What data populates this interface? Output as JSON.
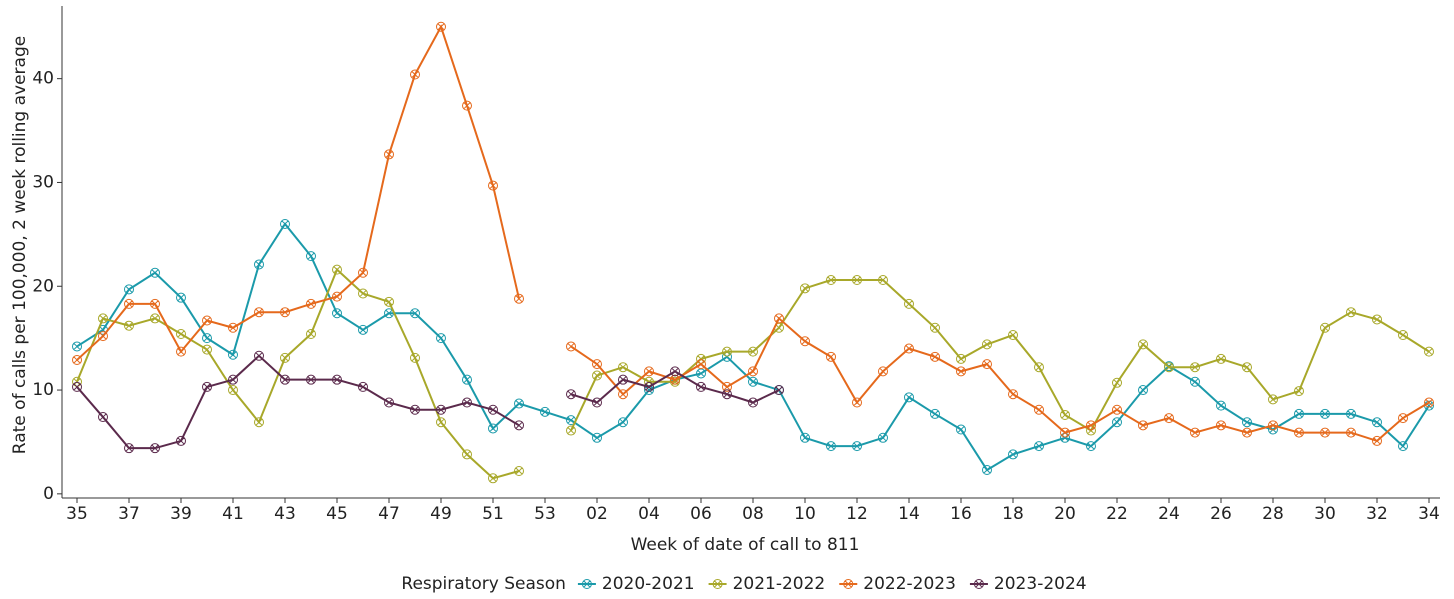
{
  "chart_data": {
    "type": "line",
    "x_label": "Week of date of call to 811",
    "y_label": "Rate of calls per 100,000, 2 week rolling average",
    "legend_title": "Respiratory Season",
    "legend_position": "bottom",
    "grid": false,
    "categories": [
      "35",
      null,
      "37",
      null,
      "39",
      null,
      "41",
      null,
      "43",
      null,
      "45",
      null,
      "47",
      null,
      "49",
      null,
      "51",
      null,
      "53",
      null,
      "02",
      null,
      "04",
      null,
      "06",
      null,
      "08",
      null,
      "10",
      null,
      "12",
      null,
      "14",
      null,
      "16",
      null,
      "18",
      null,
      "20",
      null,
      "22",
      null,
      "24",
      null,
      "26",
      null,
      "28",
      null,
      "30",
      null,
      "32",
      null,
      "34"
    ],
    "ylim": [
      -0.4,
      47
    ],
    "yticks": [
      0,
      10,
      20,
      30,
      40
    ],
    "series": [
      {
        "name": "2020-2021",
        "color": "#1b9aaa",
        "values": [
          14.2,
          15.8,
          19.7,
          21.3,
          18.9,
          15.0,
          13.4,
          22.1,
          26.0,
          22.9,
          17.4,
          15.8,
          17.4,
          17.4,
          15.0,
          11.0,
          6.3,
          8.7,
          7.9,
          7.1,
          5.4,
          6.9,
          10.0,
          11.0,
          11.6,
          13.2,
          10.8,
          10.0,
          5.4,
          4.6,
          4.6,
          5.4,
          9.3,
          7.7,
          6.2,
          2.3,
          3.8,
          4.6,
          5.4,
          4.6,
          6.9,
          10.0,
          12.3,
          10.8,
          8.5,
          6.9,
          6.2,
          7.7,
          7.7,
          7.7,
          6.9,
          4.6,
          8.5
        ]
      },
      {
        "name": "2021-2022",
        "color": "#a8a82a",
        "values": [
          10.8,
          16.9,
          16.2,
          16.9,
          15.4,
          13.9,
          10.0,
          6.9,
          13.1,
          15.4,
          21.6,
          19.3,
          18.5,
          13.1,
          6.9,
          3.8,
          1.5,
          2.2,
          null,
          6.1,
          11.4,
          12.2,
          10.8,
          10.8,
          13.0,
          13.7,
          13.7,
          16.0,
          19.8,
          20.6,
          20.6,
          20.6,
          18.3,
          16.0,
          13.0,
          14.4,
          15.3,
          12.2,
          7.6,
          6.1,
          10.7,
          14.4,
          12.2,
          12.2,
          13.0,
          12.2,
          9.1,
          9.9,
          16.0,
          17.5,
          16.8,
          15.3,
          13.7
        ]
      },
      {
        "name": "2022-2023",
        "color": "#e5691c",
        "values": [
          12.9,
          15.2,
          18.3,
          18.3,
          13.7,
          16.7,
          16.0,
          17.5,
          17.5,
          18.3,
          19.0,
          21.3,
          32.7,
          40.4,
          45.0,
          37.4,
          29.7,
          18.8,
          null,
          14.2,
          12.5,
          9.6,
          11.8,
          11.0,
          12.5,
          10.3,
          11.8,
          16.9,
          14.7,
          13.2,
          8.8,
          11.8,
          14.0,
          13.2,
          11.8,
          12.5,
          9.6,
          8.1,
          5.9,
          6.6,
          8.1,
          6.6,
          7.3,
          5.9,
          6.6,
          5.9,
          6.6,
          5.9,
          5.9,
          5.9,
          5.1,
          7.3,
          8.8
        ]
      },
      {
        "name": "2023-2024",
        "color": "#5b2a4c",
        "values": [
          10.3,
          7.4,
          4.4,
          4.4,
          5.1,
          10.3,
          11.0,
          13.3,
          11.0,
          11.0,
          11.0,
          10.3,
          8.8,
          8.1,
          8.1,
          8.8,
          8.1,
          6.6,
          null,
          9.6,
          8.8,
          11.0,
          10.3,
          11.8,
          10.3,
          9.6,
          8.8,
          10.0,
          null,
          null,
          null,
          null,
          null,
          null,
          null,
          null,
          null,
          null,
          null,
          null,
          null,
          null,
          null,
          null,
          null,
          null,
          null,
          null,
          null,
          null,
          null,
          null,
          null
        ]
      }
    ]
  }
}
